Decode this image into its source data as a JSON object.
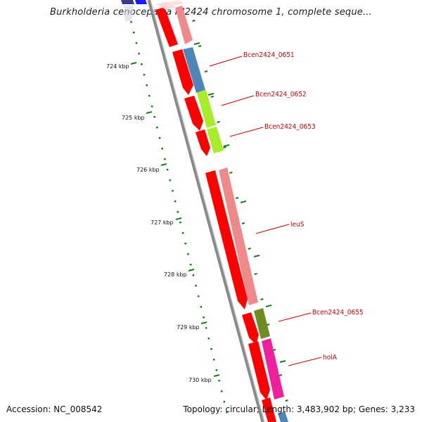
{
  "title": "Burkholderia cenocepacia HI2424 chromosome 1, complete seque...",
  "footer": {
    "accession": "Accession: NC_008542",
    "summary": "Topology: circular; Length: 3,483,902 bp; Genes: 3,233"
  },
  "ticks": [
    "724 kbp",
    "725 kbp",
    "726 kbp",
    "727 kbp",
    "728 kbp",
    "729 kbp",
    "730 kbp"
  ],
  "gene_labels": [
    "Bcen2424_0651",
    "Bcen2424_0652",
    "Bcen2424_0653",
    "leuS",
    "Bcen2424_0655",
    "holA"
  ],
  "colors": {
    "backbone": "#8a8a8a",
    "forward_strand": "#ff0000",
    "cog_pink": "#f08a8a",
    "cog_blue": "#4f86b8",
    "cog_lime": "#a8ec2a",
    "cog_olive": "#6e8c22",
    "cog_magenta": "#f0209c",
    "tick_green": "#1b7a1b",
    "label_red": "#cc0000"
  }
}
